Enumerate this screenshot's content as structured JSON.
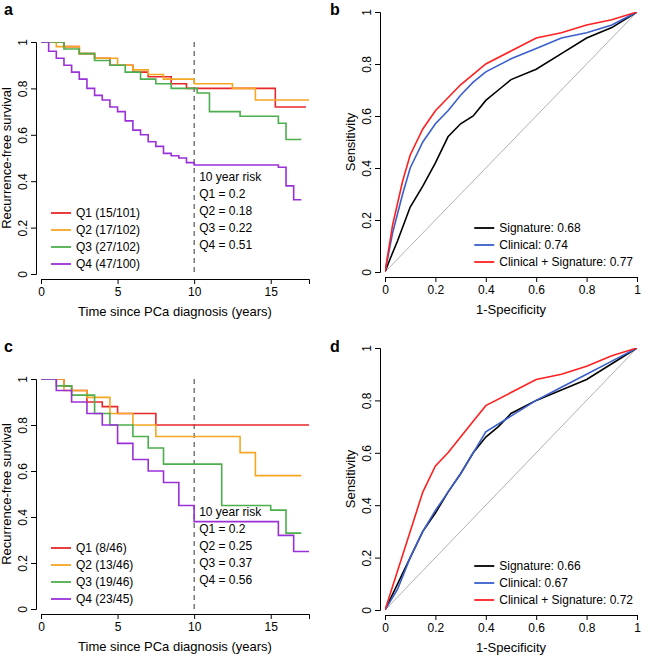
{
  "chart_data": [
    {
      "type": "line",
      "title": "a",
      "x_label": "Time since PCa diagnosis (years)",
      "y_label": "Recurrence-free survival",
      "xlim": [
        0,
        17.5
      ],
      "xticks": [
        0,
        5,
        10,
        15
      ],
      "ylim": [
        0,
        1
      ],
      "yticks": [
        0,
        0.2,
        0.4,
        0.6,
        0.8,
        1
      ],
      "legend": "bottom-left",
      "line_style": "step",
      "vline": {
        "x": 10,
        "line_style": "dashed"
      },
      "annotations": [
        "10 year risk",
        "Q1 = 0.2",
        "Q2 = 0.18",
        "Q3 = 0.22",
        "Q4 = 0.51"
      ],
      "series": [
        {
          "name": "Q1 (15/101)",
          "color": "#e8272b",
          "x": [
            0,
            1.5,
            2.5,
            3.5,
            4.5,
            6,
            7,
            8.5,
            9.5,
            15.3,
            17.3
          ],
          "values": [
            1,
            0.98,
            0.95,
            0.93,
            0.9,
            0.87,
            0.85,
            0.82,
            0.8,
            0.72,
            0.72
          ]
        },
        {
          "name": "Q2 (17/102)",
          "color": "#f5a623",
          "x": [
            0,
            1,
            2.5,
            3.5,
            5,
            6,
            7,
            8,
            10,
            12.5,
            14,
            17.5
          ],
          "values": [
            1,
            0.98,
            0.95,
            0.93,
            0.9,
            0.88,
            0.86,
            0.84,
            0.82,
            0.8,
            0.75,
            0.75
          ]
        },
        {
          "name": "Q3 (27/102)",
          "color": "#4cae4c",
          "x": [
            0,
            1.5,
            2.5,
            3.5,
            4.5,
            5.5,
            6.5,
            7.5,
            8.5,
            10.2,
            11,
            13,
            15.5,
            16,
            17
          ],
          "values": [
            1,
            0.97,
            0.95,
            0.92,
            0.9,
            0.87,
            0.84,
            0.82,
            0.8,
            0.78,
            0.7,
            0.68,
            0.65,
            0.58,
            0.58
          ]
        },
        {
          "name": "Q4 (47/100)",
          "color": "#9b30d9",
          "x": [
            0,
            0.5,
            1,
            1.5,
            2,
            2.5,
            3,
            3.5,
            4,
            4.5,
            5,
            5.5,
            6,
            6.5,
            7,
            7.5,
            8,
            8.5,
            9,
            9.5,
            10,
            15.5,
            16,
            16.5,
            17
          ],
          "values": [
            1,
            0.96,
            0.93,
            0.9,
            0.87,
            0.84,
            0.8,
            0.77,
            0.75,
            0.72,
            0.7,
            0.66,
            0.62,
            0.6,
            0.57,
            0.55,
            0.52,
            0.51,
            0.5,
            0.48,
            0.47,
            0.46,
            0.38,
            0.32,
            0.32
          ]
        }
      ]
    },
    {
      "type": "line",
      "title": "b",
      "x_label": "1-Specificity",
      "y_label": "Sensitivity",
      "xlim": [
        0,
        1
      ],
      "xticks": [
        0,
        0.2,
        0.4,
        0.6,
        0.8,
        1
      ],
      "ylim": [
        0,
        1
      ],
      "yticks": [
        0,
        0.2,
        0.4,
        0.6,
        0.8,
        1
      ],
      "legend": "bottom-right",
      "diagonal": {
        "x": [
          0,
          1
        ],
        "values": [
          0,
          1
        ],
        "color": "#b0b0b0"
      },
      "series": [
        {
          "name": "Signature: 0.68",
          "color": "#000000",
          "x": [
            0,
            0.02,
            0.05,
            0.1,
            0.15,
            0.2,
            0.25,
            0.3,
            0.35,
            0.4,
            0.45,
            0.5,
            0.6,
            0.7,
            0.8,
            0.9,
            1
          ],
          "values": [
            0,
            0.05,
            0.12,
            0.25,
            0.33,
            0.42,
            0.52,
            0.57,
            0.6,
            0.66,
            0.7,
            0.74,
            0.78,
            0.84,
            0.9,
            0.94,
            1
          ]
        },
        {
          "name": "Clinical: 0.74",
          "color": "#3a5fcd",
          "x": [
            0,
            0.03,
            0.07,
            0.1,
            0.15,
            0.2,
            0.25,
            0.3,
            0.35,
            0.4,
            0.5,
            0.6,
            0.7,
            0.8,
            0.9,
            1
          ],
          "values": [
            0,
            0.15,
            0.3,
            0.4,
            0.5,
            0.57,
            0.62,
            0.68,
            0.73,
            0.77,
            0.82,
            0.86,
            0.9,
            0.92,
            0.95,
            1
          ]
        },
        {
          "name": "Clinical + Signature: 0.77",
          "color": "#ff2020",
          "x": [
            0,
            0.03,
            0.07,
            0.1,
            0.15,
            0.2,
            0.25,
            0.3,
            0.35,
            0.4,
            0.5,
            0.6,
            0.7,
            0.8,
            0.9,
            1
          ],
          "values": [
            0,
            0.18,
            0.35,
            0.45,
            0.55,
            0.62,
            0.67,
            0.72,
            0.76,
            0.8,
            0.85,
            0.9,
            0.92,
            0.95,
            0.97,
            1
          ]
        }
      ]
    },
    {
      "type": "line",
      "title": "c",
      "x_label": "Time since PCa diagnosis (years)",
      "y_label": "Recurrence-free survival",
      "xlim": [
        0,
        17.5
      ],
      "xticks": [
        0,
        5,
        10,
        15
      ],
      "ylim": [
        0,
        1
      ],
      "yticks": [
        0,
        0.2,
        0.4,
        0.6,
        0.8,
        1
      ],
      "legend": "bottom-left",
      "line_style": "step",
      "vline": {
        "x": 10,
        "line_style": "dashed"
      },
      "annotations": [
        "10 year risk",
        "Q1 = 0.2",
        "Q2 = 0.25",
        "Q3 = 0.37",
        "Q4 = 0.56"
      ],
      "series": [
        {
          "name": "Q1 (8/46)",
          "color": "#e8272b",
          "x": [
            0,
            1.5,
            2,
            3,
            4,
            5,
            7.5,
            17.5
          ],
          "values": [
            1,
            0.97,
            0.95,
            0.9,
            0.88,
            0.85,
            0.8,
            0.8
          ]
        },
        {
          "name": "Q2 (13/46)",
          "color": "#f5a623",
          "x": [
            0,
            1.5,
            3,
            4.5,
            6,
            7.5,
            13,
            14,
            17
          ],
          "values": [
            1,
            0.95,
            0.92,
            0.85,
            0.8,
            0.75,
            0.68,
            0.58,
            0.58
          ]
        },
        {
          "name": "Q3 (19/46)",
          "color": "#4cae4c",
          "x": [
            0,
            1,
            2,
            3.5,
            4.5,
            6,
            7,
            8,
            11.8,
            15,
            16,
            17
          ],
          "values": [
            1,
            0.97,
            0.93,
            0.85,
            0.8,
            0.75,
            0.7,
            0.63,
            0.45,
            0.43,
            0.33,
            0.33
          ]
        },
        {
          "name": "Q4 (23/45)",
          "color": "#9b30d9",
          "x": [
            0,
            1,
            2,
            3,
            4,
            5,
            6,
            7,
            8,
            9,
            10,
            15.5,
            16.5,
            17.5
          ],
          "values": [
            1,
            0.95,
            0.9,
            0.85,
            0.8,
            0.72,
            0.65,
            0.6,
            0.55,
            0.45,
            0.38,
            0.32,
            0.25,
            0.25
          ]
        }
      ]
    },
    {
      "type": "line",
      "title": "d",
      "x_label": "1-Specificity",
      "y_label": "Sensitivity",
      "xlim": [
        0,
        1
      ],
      "xticks": [
        0,
        0.2,
        0.4,
        0.6,
        0.8,
        1
      ],
      "ylim": [
        0,
        1
      ],
      "yticks": [
        0,
        0.2,
        0.4,
        0.6,
        0.8,
        1
      ],
      "legend": "bottom-right",
      "diagonal": {
        "x": [
          0,
          1
        ],
        "values": [
          0,
          1
        ],
        "color": "#b0b0b0"
      },
      "series": [
        {
          "name": "Signature: 0.66",
          "color": "#000000",
          "x": [
            0,
            0.05,
            0.1,
            0.15,
            0.2,
            0.25,
            0.3,
            0.35,
            0.4,
            0.45,
            0.5,
            0.6,
            0.7,
            0.8,
            0.9,
            1
          ],
          "values": [
            0,
            0.1,
            0.2,
            0.3,
            0.37,
            0.45,
            0.52,
            0.6,
            0.66,
            0.7,
            0.75,
            0.8,
            0.84,
            0.88,
            0.94,
            1
          ]
        },
        {
          "name": "Clinical: 0.67",
          "color": "#3a5fcd",
          "x": [
            0,
            0.05,
            0.1,
            0.15,
            0.2,
            0.25,
            0.3,
            0.35,
            0.4,
            0.5,
            0.6,
            0.7,
            0.8,
            0.9,
            1
          ],
          "values": [
            0,
            0.08,
            0.2,
            0.3,
            0.38,
            0.45,
            0.52,
            0.6,
            0.68,
            0.74,
            0.8,
            0.85,
            0.9,
            0.95,
            1
          ]
        },
        {
          "name": "Clinical + Signature: 0.72",
          "color": "#ff2020",
          "x": [
            0,
            0.05,
            0.1,
            0.15,
            0.2,
            0.25,
            0.3,
            0.35,
            0.4,
            0.5,
            0.6,
            0.7,
            0.8,
            0.9,
            1
          ],
          "values": [
            0,
            0.15,
            0.3,
            0.45,
            0.55,
            0.6,
            0.66,
            0.72,
            0.78,
            0.83,
            0.88,
            0.9,
            0.93,
            0.97,
            1
          ]
        }
      ]
    }
  ]
}
